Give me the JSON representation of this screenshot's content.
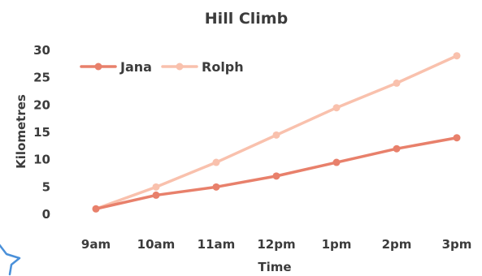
{
  "chart_data": {
    "type": "line",
    "title": "Hill Climb",
    "xlabel": "Time",
    "ylabel": "Kilometres",
    "categories": [
      "9am",
      "10am",
      "11am",
      "12pm",
      "1pm",
      "2pm",
      "3pm"
    ],
    "ylim": [
      0,
      30
    ],
    "yticks": [
      "0",
      "5",
      "10",
      "15",
      "20",
      "25",
      "30"
    ],
    "grid": false,
    "legend_position": "top-left",
    "series": [
      {
        "name": "Jana",
        "color": "#e8806b",
        "values": [
          1,
          3.5,
          5,
          7,
          9.5,
          12,
          14
        ]
      },
      {
        "name": "Rolph",
        "color": "#f9c1ad",
        "values": [
          1,
          5,
          9.5,
          14.5,
          19.5,
          24,
          29
        ]
      }
    ]
  },
  "decor": {
    "star_icon_color": "#4a90d9"
  }
}
